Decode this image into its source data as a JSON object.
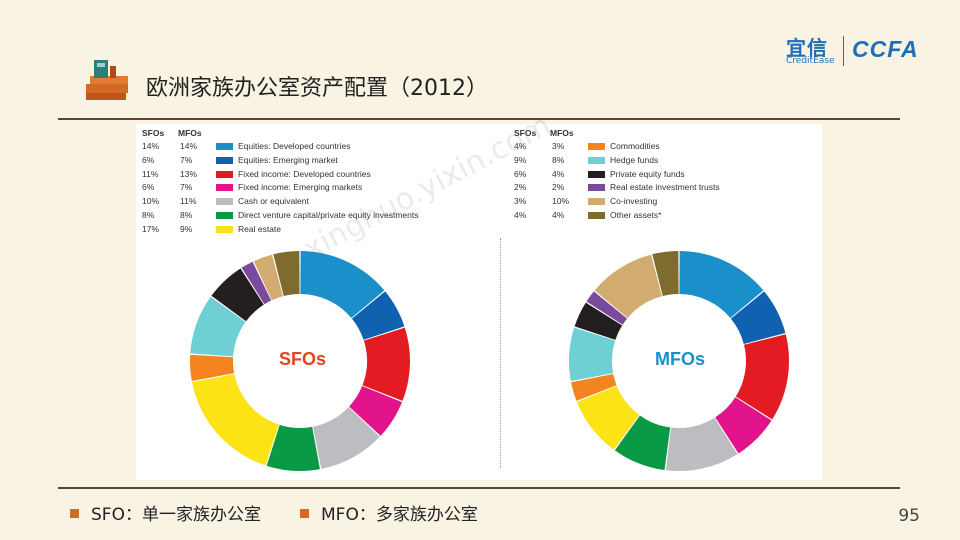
{
  "slide": {
    "title": "欧洲家族办公室资产配置（2012）",
    "page_number": "95",
    "brand": {
      "yixin": "宜信",
      "creditease": "CreditEase",
      "ccfa": "CCFA"
    },
    "watermark": "xinghuo.yixin.com",
    "footnotes": [
      {
        "abbr": "SFO",
        "sep": "：",
        "desc": "单一家族办公室"
      },
      {
        "abbr": "MFO",
        "sep": "：",
        "desc": "多家族办公室"
      }
    ],
    "accent": "#d26b27"
  },
  "chart_data": {
    "type": "pie",
    "style": "donut",
    "column_headers": [
      "SFOs",
      "MFOs"
    ],
    "categories": [
      "Equities: Developed countries",
      "Equities: Emerging market",
      "Fixed income: Developed countries",
      "Fixed income: Emerging markets",
      "Cash or equivalent",
      "Direct venture capital/private equity investments",
      "Real estate",
      "Commodities",
      "Hedge funds",
      "Private equity funds",
      "Real estate investment trusts",
      "Co-investing",
      "Other assets*"
    ],
    "colors": [
      "#1a8fca",
      "#1062b0",
      "#e31c23",
      "#e2148b",
      "#bcbdc0",
      "#0a9a46",
      "#fce316",
      "#f3841f",
      "#6ecfd4",
      "#231f20",
      "#7a4a9c",
      "#d1ab6f",
      "#7e6b2e"
    ],
    "series": [
      {
        "name": "SFOs",
        "values": [
          14,
          6,
          11,
          6,
          10,
          8,
          17,
          4,
          9,
          6,
          2,
          3,
          4
        ],
        "labels": [
          "14%",
          "6%",
          "11%",
          "6%",
          "10%",
          "8%",
          "17%",
          "4%",
          "9%",
          "6%",
          "2%",
          "3%",
          "4%"
        ]
      },
      {
        "name": "MFOs",
        "values": [
          14,
          7,
          13,
          7,
          11,
          8,
          9,
          3,
          8,
          4,
          2,
          10,
          4
        ],
        "labels": [
          "14%",
          "7%",
          "13%",
          "7%",
          "11%",
          "8%",
          "9%",
          "3%",
          "8%",
          "4%",
          "2%",
          "10%",
          "4%"
        ]
      }
    ],
    "center_labels": [
      "SFOs",
      "MFOs"
    ],
    "center_label_colors": [
      "#e2441c",
      "#1a8fca"
    ]
  }
}
